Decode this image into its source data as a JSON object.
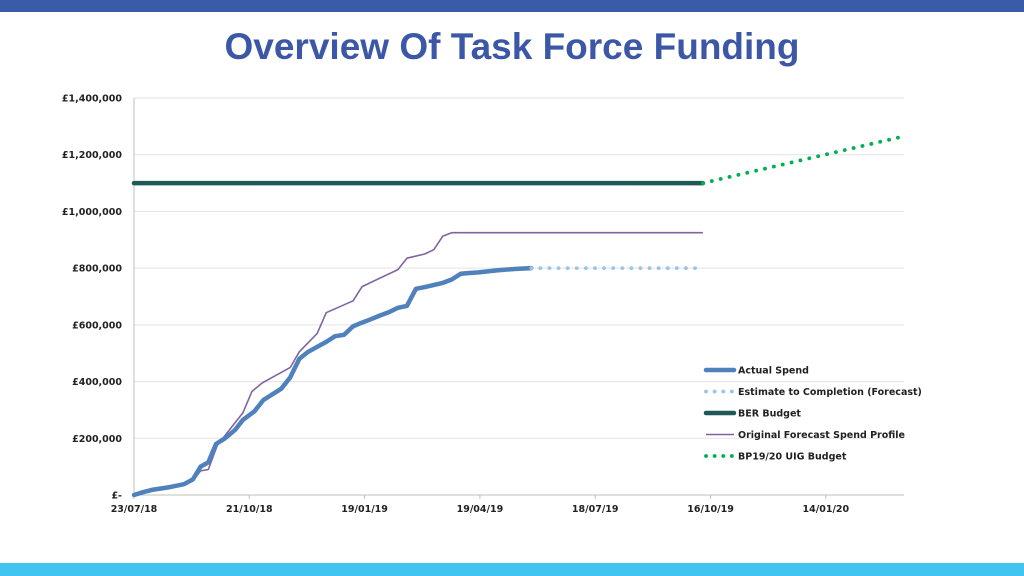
{
  "page": {
    "title": "Overview Of Task Force Funding",
    "top_bar_color": "#3a5ba8",
    "bottom_bar_color": "#41c4ef"
  },
  "chart_data": {
    "type": "line",
    "x_axis": {
      "kind": "date",
      "range": [
        "2018-07-23",
        "2020-03-15"
      ],
      "tick_dates": [
        "2018-07-23",
        "2018-10-21",
        "2019-01-19",
        "2019-04-19",
        "2019-07-18",
        "2019-10-16",
        "2020-01-14"
      ],
      "tick_labels": [
        "23/07/18",
        "21/10/18",
        "19/01/19",
        "19/04/19",
        "18/07/19",
        "16/10/19",
        "14/01/20"
      ]
    },
    "y_axis": {
      "range": [
        0,
        1400000
      ],
      "ticks": [
        0,
        200000,
        400000,
        600000,
        800000,
        1000000,
        1200000,
        1400000
      ],
      "tick_labels": [
        "£-",
        "£200,000",
        "£400,000",
        "£600,000",
        "£800,000",
        "£1,000,000",
        "£1,200,000",
        "£1,400,000"
      ]
    },
    "grid": "horizontal",
    "legend_position": "bottom-right",
    "series": [
      {
        "name": "Actual Spend",
        "color": "#4f81bd",
        "style": "solid-thick",
        "points": [
          [
            "2018-07-23",
            0
          ],
          [
            "2018-07-30",
            10000
          ],
          [
            "2018-08-06",
            18000
          ],
          [
            "2018-08-20",
            28000
          ],
          [
            "2018-08-31",
            38000
          ],
          [
            "2018-09-07",
            55000
          ],
          [
            "2018-09-13",
            100000
          ],
          [
            "2018-09-19",
            115000
          ],
          [
            "2018-09-25",
            180000
          ],
          [
            "2018-10-02",
            200000
          ],
          [
            "2018-10-10",
            230000
          ],
          [
            "2018-10-16",
            265000
          ],
          [
            "2018-10-25",
            295000
          ],
          [
            "2018-11-01",
            335000
          ],
          [
            "2018-11-15",
            375000
          ],
          [
            "2018-11-22",
            415000
          ],
          [
            "2018-11-29",
            480000
          ],
          [
            "2018-12-06",
            505000
          ],
          [
            "2018-12-20",
            540000
          ],
          [
            "2018-12-27",
            560000
          ],
          [
            "2019-01-03",
            565000
          ],
          [
            "2019-01-10",
            595000
          ],
          [
            "2019-01-17",
            608000
          ],
          [
            "2019-01-24",
            620000
          ],
          [
            "2019-01-31",
            633000
          ],
          [
            "2019-02-07",
            645000
          ],
          [
            "2019-02-14",
            660000
          ],
          [
            "2019-02-21",
            667000
          ],
          [
            "2019-02-28",
            727000
          ],
          [
            "2019-03-07",
            733000
          ],
          [
            "2019-03-21",
            748000
          ],
          [
            "2019-03-28",
            760000
          ],
          [
            "2019-04-04",
            780000
          ],
          [
            "2019-04-11",
            783000
          ],
          [
            "2019-04-18",
            785000
          ],
          [
            "2019-05-02",
            792000
          ],
          [
            "2019-05-16",
            797000
          ],
          [
            "2019-05-29",
            800000
          ]
        ]
      },
      {
        "name": "Estimate to Completion (Forecast)",
        "color": "#9dc3e6",
        "style": "dotted",
        "points": [
          [
            "2019-05-29",
            800000
          ],
          [
            "2019-10-10",
            800000
          ]
        ]
      },
      {
        "name": "BER Budget",
        "color": "#1f5957",
        "style": "solid-thick",
        "points": [
          [
            "2018-07-23",
            1100000
          ],
          [
            "2019-10-10",
            1100000
          ]
        ]
      },
      {
        "name": "Original Forecast Spend Profile",
        "color": "#8064a2",
        "style": "solid-thin",
        "points": [
          [
            "2018-07-23",
            0
          ],
          [
            "2018-08-02",
            15000
          ],
          [
            "2018-08-31",
            35000
          ],
          [
            "2018-09-07",
            50000
          ],
          [
            "2018-09-13",
            85000
          ],
          [
            "2018-09-19",
            90000
          ],
          [
            "2018-09-26",
            175000
          ],
          [
            "2018-10-16",
            290000
          ],
          [
            "2018-10-23",
            365000
          ],
          [
            "2018-10-31",
            395000
          ],
          [
            "2018-11-22",
            450000
          ],
          [
            "2018-11-29",
            505000
          ],
          [
            "2018-12-13",
            570000
          ],
          [
            "2018-12-20",
            643000
          ],
          [
            "2019-01-10",
            685000
          ],
          [
            "2019-01-17",
            735000
          ],
          [
            "2019-02-14",
            795000
          ],
          [
            "2019-02-21",
            835000
          ],
          [
            "2019-03-07",
            850000
          ],
          [
            "2019-03-14",
            865000
          ],
          [
            "2019-03-21",
            913000
          ],
          [
            "2019-03-28",
            925000
          ],
          [
            "2019-10-10",
            925000
          ]
        ]
      },
      {
        "name": "BP19/20 UIG Budget",
        "color": "#00b050",
        "style": "dotted",
        "points": [
          [
            "2019-10-10",
            1100000
          ],
          [
            "2020-03-15",
            1265000
          ]
        ]
      }
    ]
  }
}
